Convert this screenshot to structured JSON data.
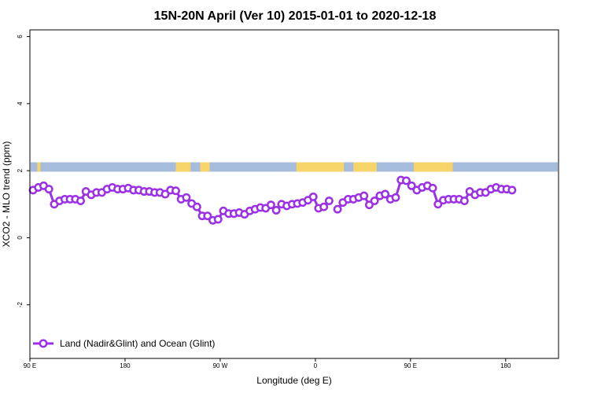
{
  "chart_data": {
    "type": "line",
    "title": "15N-20N April (Ver 10)   2015-01-01 to 2020-12-18",
    "xlabel": "Longitude (deg E)",
    "ylabel": "XCO2 - MLO trend (ppm)",
    "xlim": [
      90,
      450
    ],
    "ylim": [
      -3.6,
      6.2
    ],
    "x_ticks": [
      {
        "value": 90,
        "label": "90 E"
      },
      {
        "value": 180,
        "label": "180"
      },
      {
        "value": 270,
        "label": "90 W"
      },
      {
        "value": 360,
        "label": "0"
      },
      {
        "value": 450,
        "label": "90 E"
      },
      {
        "value": 540,
        "label": "180"
      }
    ],
    "y_ticks": [
      {
        "value": -2,
        "label": "-2"
      },
      {
        "value": 0,
        "label": "0"
      },
      {
        "value": 2,
        "label": "2"
      },
      {
        "value": 4,
        "label": "4"
      },
      {
        "value": 6,
        "label": "6"
      }
    ],
    "map_strip": {
      "y_range": [
        1.97,
        2.25
      ],
      "ocean_color": "#a5bcdc",
      "land_color": "#f7d46a",
      "land_segments": [
        [
          97,
          100
        ],
        [
          228,
          242
        ],
        [
          251,
          260
        ],
        [
          342,
          387
        ],
        [
          396,
          418
        ],
        [
          453,
          490
        ]
      ]
    },
    "legend": {
      "position": "bottom-left"
    },
    "series": [
      {
        "name": "Land (Nadir&Glint) and Ocean (Glint)",
        "color": "#9b30e6",
        "segments": [
          {
            "x": [
              93,
              98,
              103,
              108,
              113,
              118,
              123,
              128,
              133,
              138,
              143,
              148,
              153,
              158,
              163,
              168,
              173,
              178,
              183,
              188,
              193,
              198,
              203,
              208,
              213,
              218,
              223,
              228,
              233,
              238,
              243,
              248,
              253,
              258,
              263,
              268,
              273,
              278,
              283,
              288,
              293,
              298,
              303,
              308,
              313,
              318,
              323,
              328,
              333,
              338,
              343,
              348,
              353,
              358,
              363,
              368
            ],
            "y": [
              1.42,
              1.5,
              1.55,
              1.45,
              1.0,
              1.1,
              1.15,
              1.15,
              1.15,
              1.1,
              1.38,
              1.28,
              1.35,
              1.35,
              1.45,
              1.5,
              1.45,
              1.45,
              1.48,
              1.42,
              1.42,
              1.38,
              1.38,
              1.35,
              1.35,
              1.3,
              1.42,
              1.4,
              1.15,
              1.2,
              1.02,
              0.92,
              0.65,
              0.65,
              0.52,
              0.55,
              0.8,
              0.72,
              0.72,
              0.75,
              0.7,
              0.8,
              0.85,
              0.9,
              0.88,
              0.98,
              0.82,
              1.0,
              0.95,
              1.0,
              1.02,
              1.05,
              1.12,
              1.22,
              0.88,
              0.92
            ]
          },
          {
            "x": [
              373
            ],
            "y": [
              1.1
            ]
          },
          {
            "x": [
              381,
              386,
              391,
              396,
              401,
              406,
              411,
              416,
              421,
              426,
              431,
              436,
              441,
              446,
              451,
              456,
              461,
              466,
              471,
              476,
              481,
              486,
              491,
              496,
              501,
              506,
              511,
              516,
              521,
              526,
              531,
              536,
              541,
              546
            ],
            "y": [
              0.85,
              1.05,
              1.15,
              1.15,
              1.2,
              1.25,
              0.98,
              1.1,
              1.25,
              1.3,
              1.15,
              1.2,
              1.72,
              1.7,
              1.55,
              1.42,
              1.5,
              1.55,
              1.48,
              1.0,
              1.12,
              1.15,
              1.15,
              1.15,
              1.1,
              1.38,
              1.28,
              1.35,
              1.35,
              1.45,
              1.5,
              1.45,
              1.45,
              1.42
            ]
          }
        ]
      }
    ]
  }
}
